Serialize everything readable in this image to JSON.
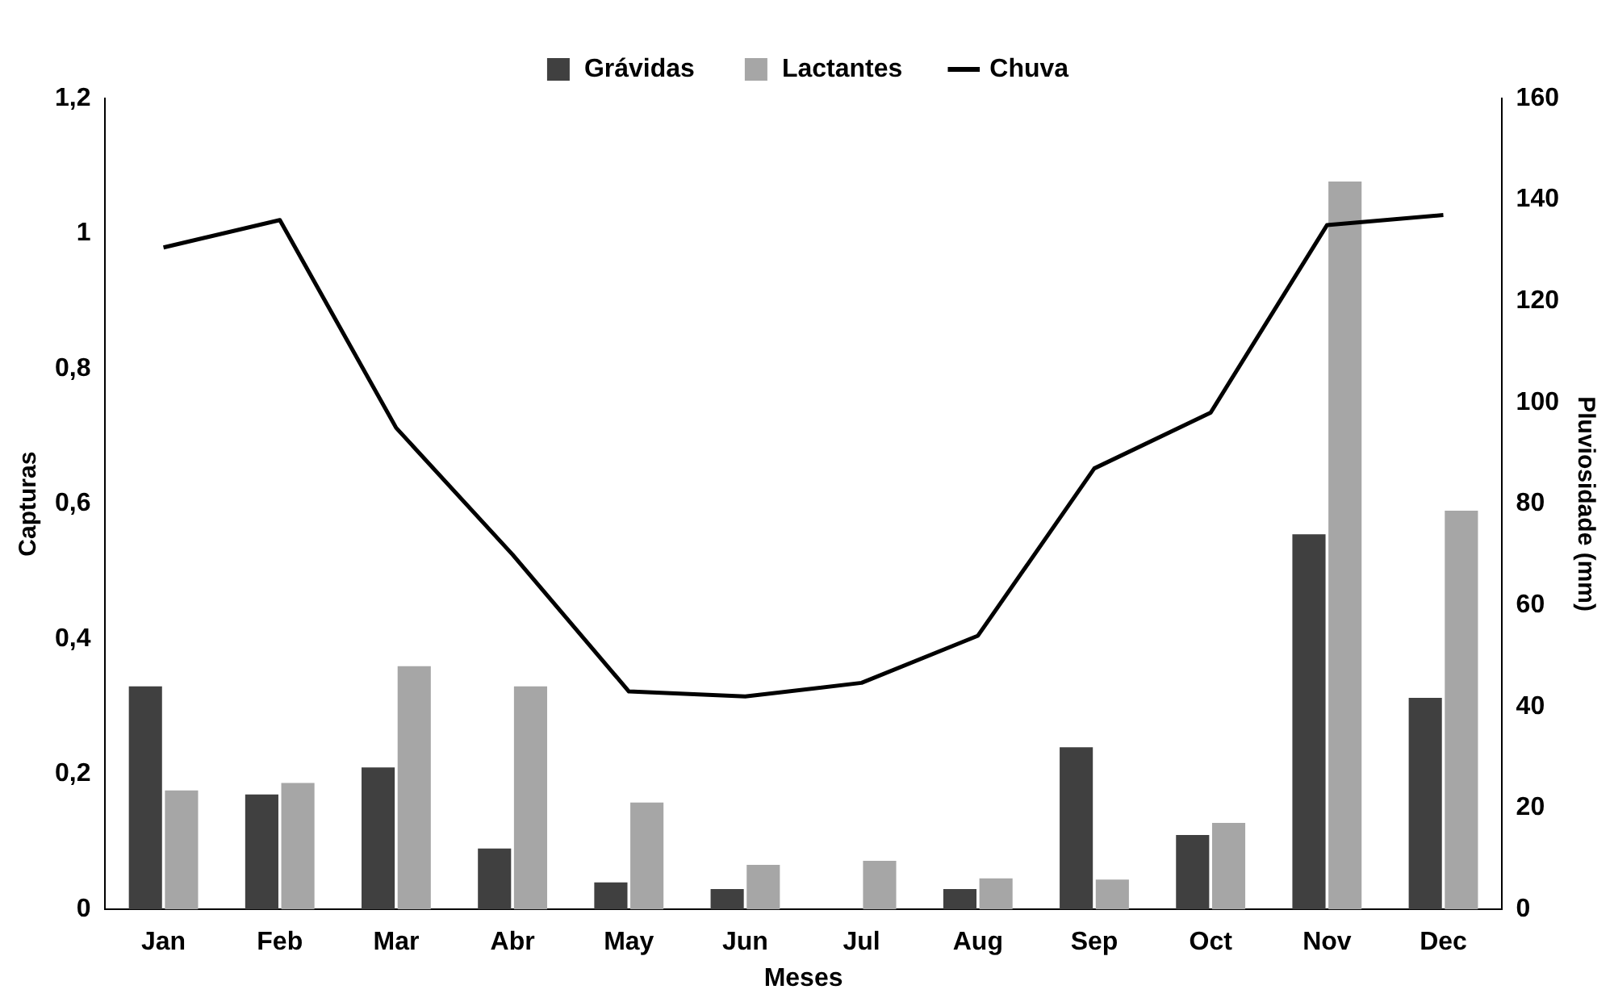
{
  "chart_data": {
    "type": "bar",
    "xlabel": "Meses",
    "ylabel": "Capturas",
    "y2label": "Pluviosidade (mm)",
    "categories": [
      "Jan",
      "Feb",
      "Mar",
      "Abr",
      "May",
      "Jun",
      "Jul",
      "Aug",
      "Sep",
      "Oct",
      "Nov",
      "Dec"
    ],
    "series": [
      {
        "name": "Grávidas",
        "color": "#404040",
        "values": [
          0.33,
          0.17,
          0.21,
          0.09,
          0.04,
          0.03,
          0,
          0.03,
          0.24,
          0.11,
          0.555,
          0.313
        ]
      },
      {
        "name": "Lactantes",
        "color": "#a6a6a6",
        "values": [
          0.176,
          0.187,
          0.36,
          0.33,
          0.158,
          0.066,
          0.072,
          0.046,
          0.044,
          0.128,
          1.077,
          0.59
        ]
      },
      {
        "name": "Chuva",
        "type": "line",
        "axis": "y2",
        "color": "#000000",
        "marker": "none",
        "values": [
          130.6,
          136,
          95,
          70,
          43,
          42,
          44.7,
          54,
          87,
          98,
          135,
          137
        ]
      }
    ],
    "ylim": [
      0,
      1.2
    ],
    "yticks": [
      0,
      {
        "value": 0.2,
        "label": "0,2"
      },
      {
        "value": 0.4,
        "label": "0,4"
      },
      {
        "value": 0.6,
        "label": "0,6"
      },
      {
        "value": 0.8,
        "label": "0,8"
      },
      1,
      {
        "value": 1.2,
        "label": "1,2"
      }
    ],
    "y2lim": [
      0,
      160
    ],
    "y2ticks": [
      0,
      20,
      40,
      60,
      80,
      100,
      120,
      140,
      160
    ],
    "grid": false,
    "legend": "top"
  }
}
